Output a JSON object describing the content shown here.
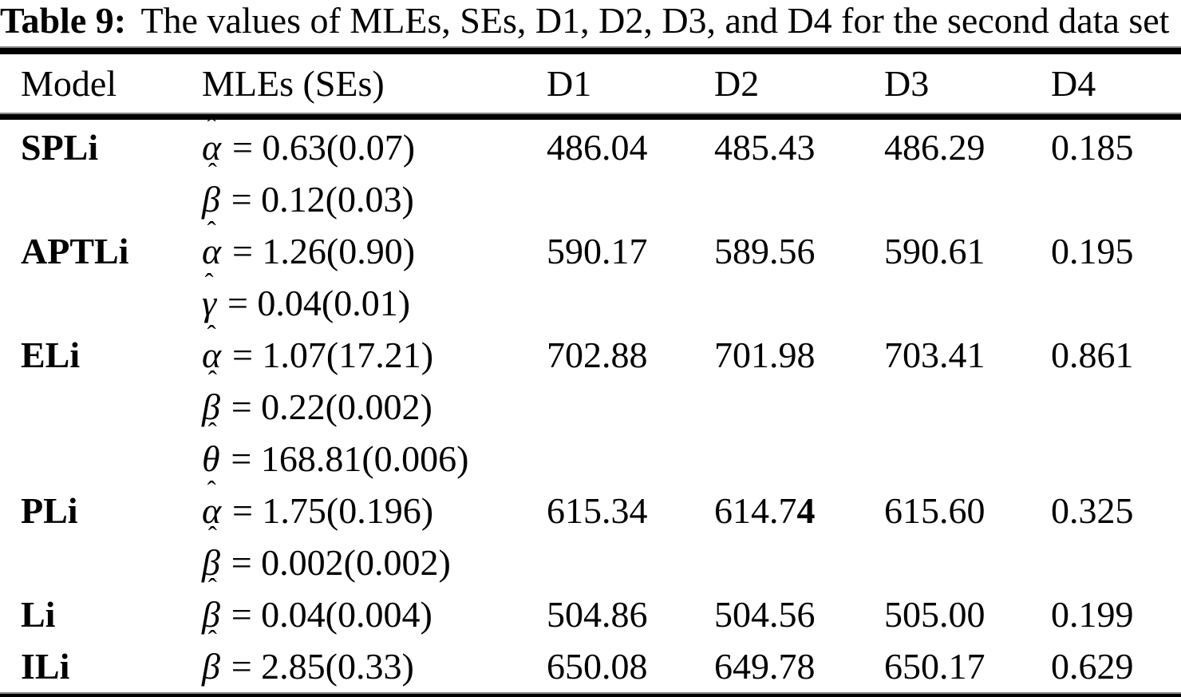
{
  "title": {
    "label": "Table 9:",
    "text": "The values of MLEs, SEs, D1, D2, D3, and D4 for the second data set"
  },
  "columns": [
    "Model",
    "MLEs (SEs)",
    "D1",
    "D2",
    "D3",
    "D4"
  ],
  "hat": "ˆ",
  "rows": [
    {
      "model": "SPLi",
      "mles": [
        {
          "param": "α",
          "value": "= 0.63(0.07)"
        },
        {
          "param": "β",
          "value": "= 0.12(0.03)"
        }
      ],
      "d1": "486.04",
      "d2": "485.43",
      "d3": "486.29",
      "d4": "0.185"
    },
    {
      "model": "APTLi",
      "mles": [
        {
          "param": "α",
          "value": "= 1.26(0.90)"
        },
        {
          "param": "γ",
          "value": "= 0.04(0.01)"
        }
      ],
      "d1": "590.17",
      "d2": "589.56",
      "d3": "590.61",
      "d4": "0.195"
    },
    {
      "model": "ELi",
      "mles": [
        {
          "param": "α",
          "value": "= 1.07(17.21)"
        },
        {
          "param": "β",
          "value": "= 0.22(0.002)"
        },
        {
          "param": "θ",
          "value": "= 168.81(0.006)"
        }
      ],
      "d1": "702.88",
      "d2": "701.98",
      "d3": "703.41",
      "d4": "0.861"
    },
    {
      "model": "PLi",
      "mles": [
        {
          "param": "α",
          "value": "= 1.75(0.196)"
        },
        {
          "param": "β",
          "value": "= 0.002(0.002)"
        }
      ],
      "d1": "615.34",
      "d2": "614.7",
      "d2_bold": "4",
      "d3": "615.60",
      "d4": "0.325"
    },
    {
      "model": "Li",
      "mles": [
        {
          "param": "β",
          "value": "= 0.04(0.004)"
        }
      ],
      "d1": "504.86",
      "d2": "504.56",
      "d3": "505.00",
      "d4": "0.199"
    },
    {
      "model": "ILi",
      "mles": [
        {
          "param": "β",
          "value": "= 2.85(0.33)"
        }
      ],
      "d1": "650.08",
      "d2": "649.78",
      "d3": "650.17",
      "d4": "0.629"
    }
  ]
}
